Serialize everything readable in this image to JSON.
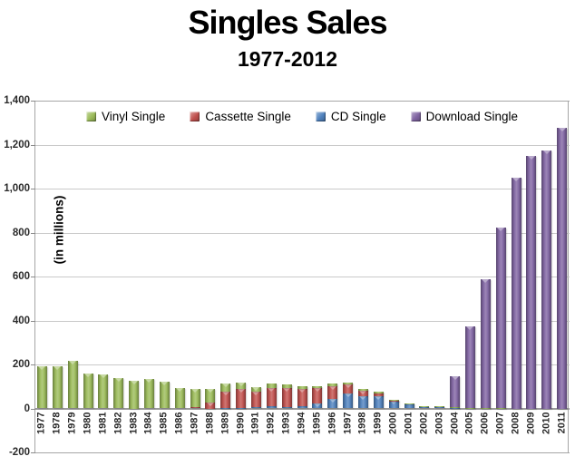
{
  "title": "Singles Sales",
  "subtitle": "1977-2012",
  "y_axis_title": "(in millions)",
  "chart_data": {
    "type": "bar",
    "stacked": true,
    "title": "Singles Sales",
    "subtitle": "1977-2012",
    "ylabel": "(in millions)",
    "xlabel": "",
    "ylim": [
      -200,
      1400
    ],
    "ytick_interval": 200,
    "ytick_labels": [
      "-200",
      "0",
      "200",
      "400",
      "600",
      "800",
      "1,000",
      "1,200",
      "1,400"
    ],
    "grid": true,
    "legend_position": "top-center",
    "categories": [
      1977,
      1978,
      1979,
      1980,
      1981,
      1982,
      1983,
      1984,
      1985,
      1986,
      1987,
      1988,
      1989,
      1990,
      1991,
      1992,
      1993,
      1994,
      1995,
      1996,
      1997,
      1998,
      1999,
      2000,
      2001,
      2002,
      2003,
      2004,
      2005,
      2006,
      2007,
      2008,
      2009,
      2010,
      2011
    ],
    "series": [
      {
        "name": "Vinyl Single",
        "color": "#9BBB59",
        "values": [
          190,
          190,
          215,
          160,
          155,
          137,
          125,
          132,
          121,
          94,
          82,
          65,
          36,
          28,
          22,
          20,
          15,
          12,
          10,
          10,
          8,
          5,
          5,
          5,
          6,
          4,
          4,
          4,
          2,
          1,
          1,
          0,
          0,
          0,
          0
        ]
      },
      {
        "name": "Cassette Single",
        "color": "#C0504D",
        "values": [
          0,
          0,
          0,
          0,
          0,
          0,
          0,
          0,
          0,
          0,
          5,
          25,
          76,
          87,
          69,
          85,
          86,
          81,
          71,
          60,
          42,
          26,
          14,
          1,
          0,
          0,
          0,
          0,
          0,
          0,
          0,
          0,
          0,
          0,
          0
        ]
      },
      {
        "name": "CD Single",
        "color": "#4F81BD",
        "values": [
          0,
          0,
          0,
          0,
          0,
          0,
          0,
          0,
          0,
          0,
          0,
          0,
          1,
          1,
          6,
          9,
          8,
          9,
          22,
          43,
          67,
          56,
          56,
          34,
          17,
          5,
          8,
          3,
          0,
          0,
          0,
          0,
          0,
          0,
          0
        ]
      },
      {
        "name": "Download Single",
        "color": "#8064A2",
        "values": [
          0,
          0,
          0,
          0,
          0,
          0,
          0,
          0,
          0,
          0,
          0,
          0,
          0,
          0,
          0,
          0,
          0,
          0,
          0,
          0,
          0,
          0,
          0,
          0,
          0,
          0,
          0,
          140,
          370,
          585,
          820,
          1050,
          1150,
          1175,
          1275
        ]
      }
    ],
    "stack_order": [
      "CD Single",
      "Cassette Single",
      "Vinyl Single",
      "Download Single"
    ]
  }
}
